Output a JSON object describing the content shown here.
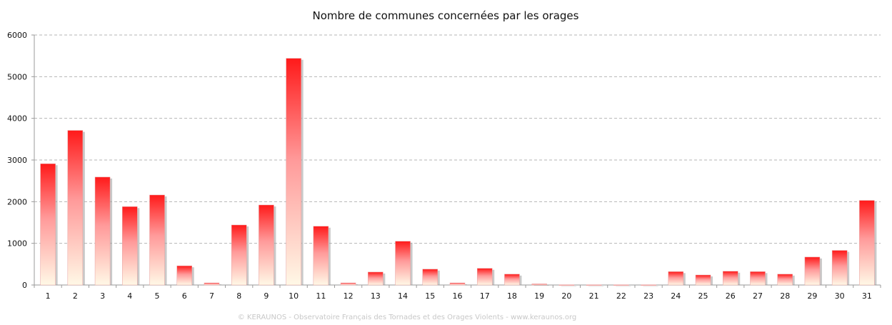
{
  "chart_data": {
    "type": "bar",
    "title": "Nombre de communes concernées par les orages",
    "xlabel": "",
    "ylabel": "",
    "categories": [
      "1",
      "2",
      "3",
      "4",
      "5",
      "6",
      "7",
      "8",
      "9",
      "10",
      "11",
      "12",
      "13",
      "14",
      "15",
      "16",
      "17",
      "18",
      "19",
      "20",
      "21",
      "22",
      "23",
      "24",
      "25",
      "26",
      "27",
      "28",
      "29",
      "30",
      "31"
    ],
    "values": [
      2910,
      3710,
      2590,
      1880,
      2160,
      460,
      50,
      1440,
      1920,
      5440,
      1410,
      50,
      310,
      1050,
      380,
      50,
      400,
      260,
      25,
      5,
      5,
      5,
      5,
      320,
      240,
      330,
      320,
      260,
      670,
      830,
      2030
    ],
    "ylim": [
      0,
      6000
    ],
    "yticks": [
      0,
      1000,
      2000,
      3000,
      4000,
      5000,
      6000
    ],
    "grid": true,
    "legend": "none",
    "colors": {
      "bar_top": "#ff1a1a",
      "bar_bottom": "#fff8e6",
      "grid": "#b4b4b4",
      "axis": "#9a9a9a"
    }
  },
  "footer": "© KERAUNOS - Observatoire Français des Tornades et des Orages Violents - www.keraunos.org"
}
